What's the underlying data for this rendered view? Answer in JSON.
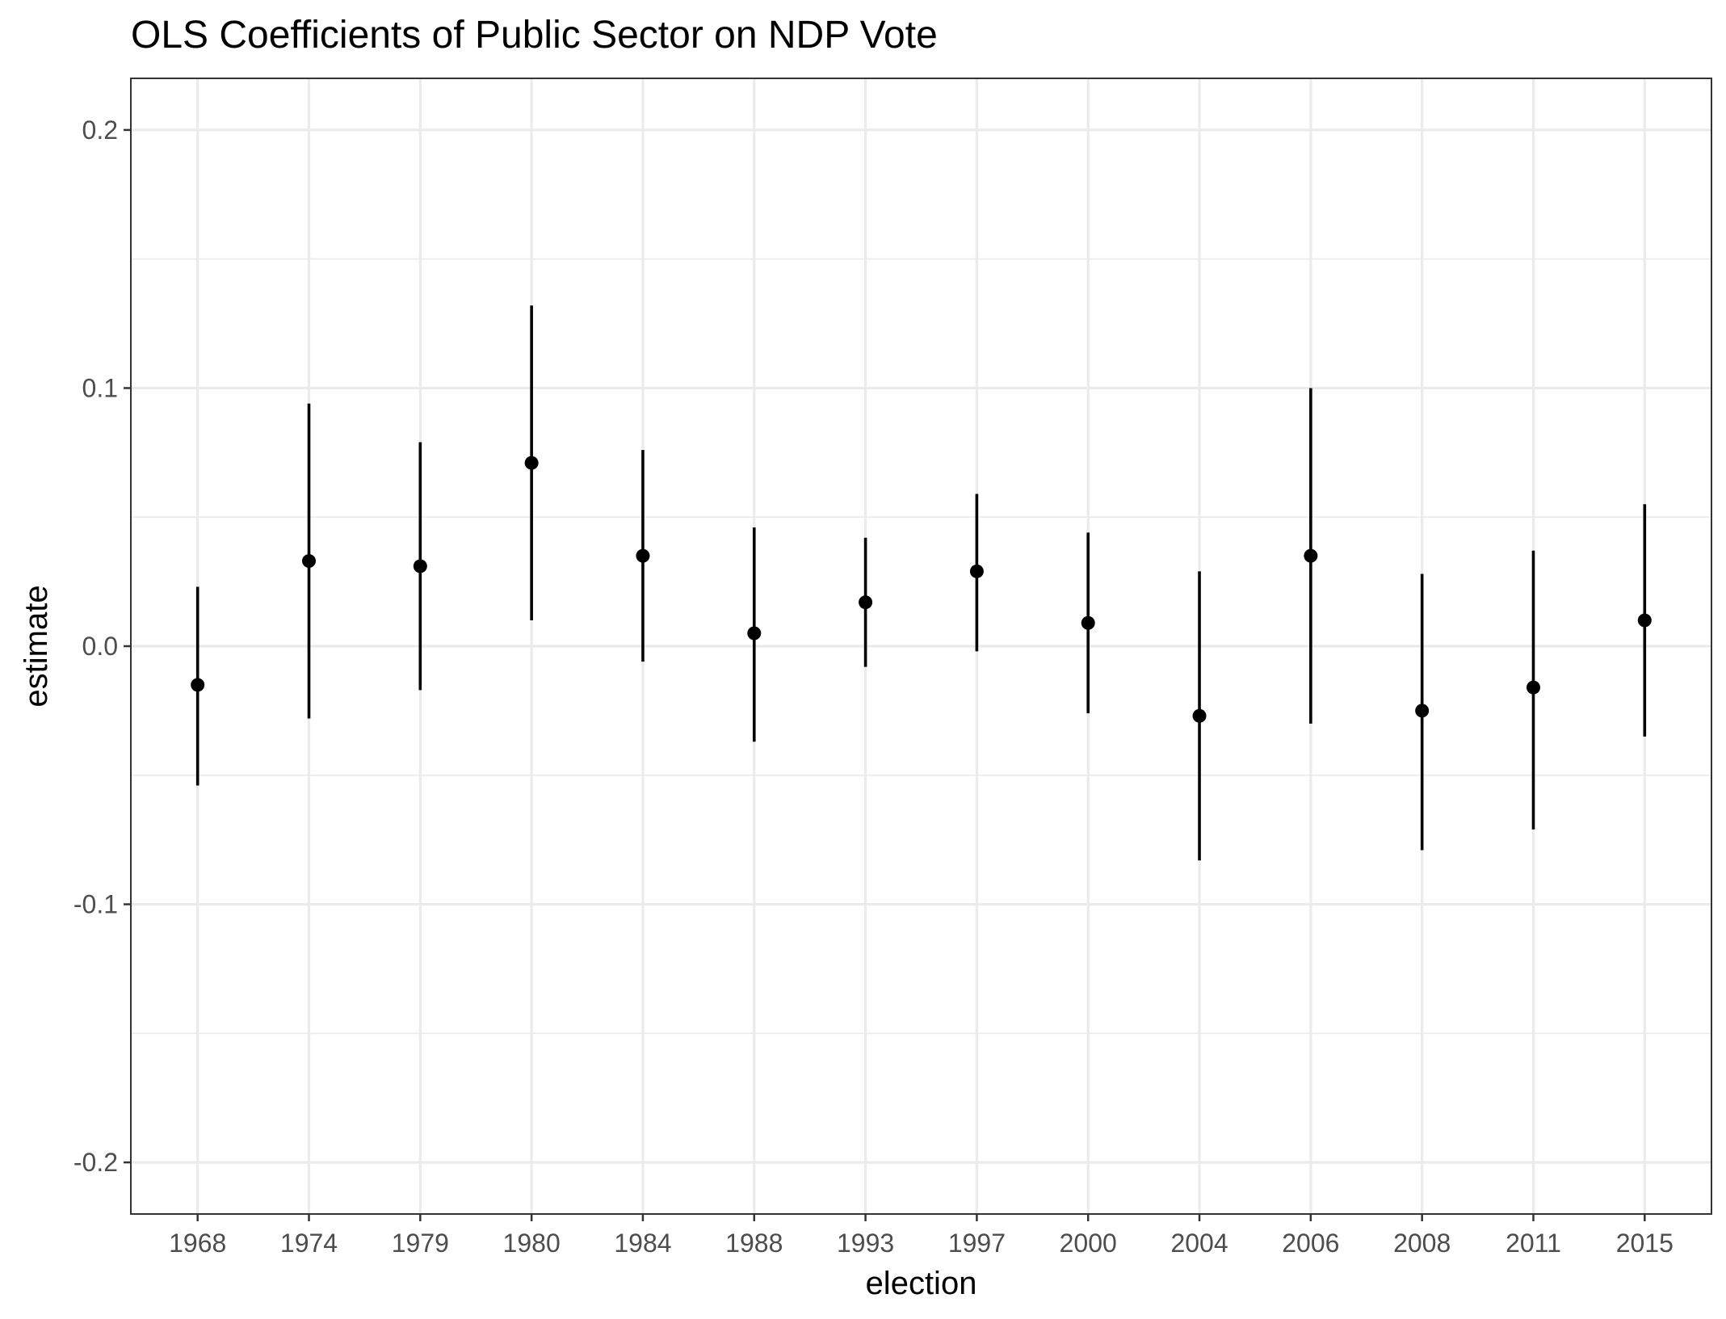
{
  "chart_data": {
    "type": "scatter",
    "title": "OLS Coefficients of Public Sector on NDP Vote",
    "xlabel": "election",
    "ylabel": "estimate",
    "ylim": [
      -0.22,
      0.22
    ],
    "y_ticks": [
      -0.2,
      -0.1,
      0.0,
      0.1,
      0.2
    ],
    "y_tick_labels": [
      "-0.2",
      "-0.1",
      "0.0",
      "0.1",
      "0.2"
    ],
    "y_minor_ticks": [
      -0.15,
      -0.05,
      0.05,
      0.15
    ],
    "grid": true,
    "legend": "none",
    "categories": [
      "1968",
      "1974",
      "1979",
      "1980",
      "1984",
      "1988",
      "1993",
      "1997",
      "2000",
      "2004",
      "2006",
      "2008",
      "2011",
      "2015"
    ],
    "series": [
      {
        "estimate": [
          -0.015,
          0.033,
          0.031,
          0.071,
          0.035,
          0.005,
          0.017,
          0.029,
          0.009,
          -0.027,
          0.035,
          -0.025,
          -0.016,
          0.01
        ],
        "lower": [
          -0.054,
          -0.028,
          -0.017,
          0.01,
          -0.006,
          -0.037,
          -0.008,
          -0.002,
          -0.026,
          -0.083,
          -0.03,
          -0.079,
          -0.071,
          -0.035
        ],
        "upper": [
          0.023,
          0.094,
          0.079,
          0.132,
          0.076,
          0.046,
          0.042,
          0.059,
          0.044,
          0.029,
          0.1,
          0.028,
          0.037,
          0.055
        ]
      }
    ],
    "colors": {
      "points": "#000000",
      "grid": "#ebebeb",
      "panel_border": "#333333",
      "tick_text": "#4d4d4d",
      "background": "#ffffff"
    }
  }
}
